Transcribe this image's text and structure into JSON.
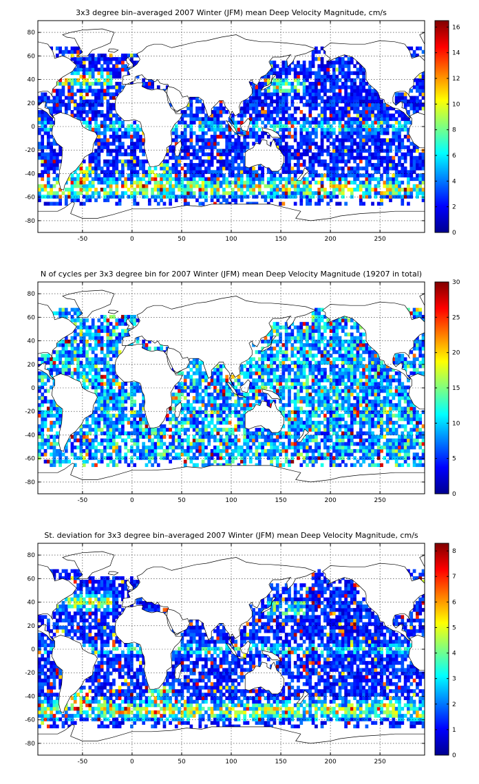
{
  "chart_data": [
    {
      "type": "heatmap",
      "title": "3x3 degree bin–averaged 2007 Winter (JFM) mean Deep Velocity Magnitude, cm/s",
      "xlim": [
        -95,
        295
      ],
      "ylim": [
        -90,
        90
      ],
      "xticks": [
        "-50",
        "0",
        "50",
        "100",
        "150",
        "200",
        "250"
      ],
      "yticks": [
        "80",
        "60",
        "40",
        "20",
        "0",
        "-20",
        "-40",
        "-60",
        "-80"
      ],
      "grid": true,
      "bin_size_deg": 3,
      "colorbar": {
        "min": 0,
        "max": 16.5,
        "ticks": [
          "16",
          "14",
          "12",
          "10",
          "8",
          "6",
          "4",
          "2",
          "0"
        ],
        "colormap": "jet"
      }
    },
    {
      "type": "heatmap",
      "title": "N of cycles per 3x3 degree bin for 2007 Winter (JFM) mean Deep Velocity Magnitude (19207 in total)",
      "xlim": [
        -95,
        295
      ],
      "ylim": [
        -90,
        90
      ],
      "xticks": [
        "-50",
        "0",
        "50",
        "100",
        "150",
        "200",
        "250"
      ],
      "yticks": [
        "80",
        "60",
        "40",
        "20",
        "0",
        "-20",
        "-40",
        "-60",
        "-80"
      ],
      "grid": true,
      "bin_size_deg": 3,
      "colorbar": {
        "min": 0,
        "max": 30,
        "ticks": [
          "30",
          "25",
          "20",
          "15",
          "10",
          "5",
          "0"
        ],
        "colormap": "jet"
      }
    },
    {
      "type": "heatmap",
      "title": "St. deviation for 3x3 degree bin–averaged 2007 Winter (JFM) mean Deep Velocity Magnitude, cm/s",
      "xlim": [
        -95,
        295
      ],
      "ylim": [
        -90,
        90
      ],
      "xticks": [
        "-50",
        "0",
        "50",
        "100",
        "150",
        "200",
        "250"
      ],
      "yticks": [
        "80",
        "60",
        "40",
        "20",
        "0",
        "-20",
        "-40",
        "-60",
        "-80"
      ],
      "grid": true,
      "bin_size_deg": 3,
      "colorbar": {
        "min": 0,
        "max": 8.3,
        "ticks": [
          "8",
          "7",
          "6",
          "5",
          "4",
          "3",
          "2",
          "1",
          "0"
        ],
        "colormap": "jet"
      }
    }
  ]
}
